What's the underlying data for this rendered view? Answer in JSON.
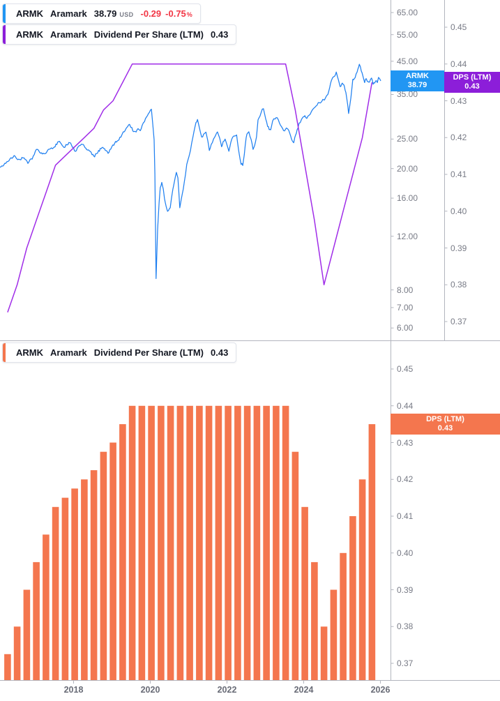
{
  "colors": {
    "price_blue": "#2080f0",
    "badge_blue": "#2196f3",
    "dps_purple_line": "#a02de8",
    "badge_purple": "#8c1ed9",
    "dps_orange": "#f4764e",
    "negative_red": "#f23645",
    "axis_line_gray": "#b2b5be",
    "axis_text_gray": "#787b86",
    "legend_text": "#131722"
  },
  "legends": {
    "price_row": {
      "symbol": "ARMK",
      "name": "Aramark",
      "last_price": "38.79",
      "currency": "USD",
      "change": "-0.29",
      "change_pct": "-0.75",
      "pct_sign": "%"
    },
    "dps_row_top": {
      "symbol": "ARMK",
      "name": "Aramark",
      "metric": "Dividend Per Share (LTM)",
      "value": "0.43"
    },
    "dps_row_bottom": {
      "symbol": "ARMK",
      "name": "Aramark",
      "metric": "Dividend Per Share (LTM)",
      "value": "0.43"
    }
  },
  "badges": {
    "price": {
      "line1": "ARMK",
      "line2": "38.79"
    },
    "dps_top": {
      "line1": "DPS (LTM)",
      "line2": "0.43"
    },
    "dps_bottom": {
      "line1": "DPS (LTM)",
      "line2": "0.43"
    }
  },
  "chart_data": [
    {
      "type": "line",
      "pane": "price-pane",
      "title": "ARMK Aramark close price (USD), daily",
      "x_axis_years": [
        2018,
        2020,
        2022,
        2024,
        2026
      ],
      "price_axis": {
        "scale": "log",
        "side": "right",
        "tick_values": [
          65,
          55,
          45,
          35,
          25,
          20,
          16,
          12,
          8,
          7,
          6
        ],
        "tick_labels": [
          "65.00",
          "55.00",
          "45.00",
          "35.00",
          "25.00",
          "20.00",
          "16.00",
          "12.00",
          "8.00",
          "7.00",
          "6.00"
        ],
        "last_value": 38.79
      },
      "dps_overlay_axis": {
        "side": "far-right",
        "tick_labels": [
          "0.45",
          "0.44",
          "0.43",
          "0.42",
          "0.41",
          "0.40",
          "0.39",
          "0.38",
          "0.37"
        ],
        "range": [
          0.37,
          0.45
        ],
        "last_value": 0.435
      },
      "series": [
        {
          "name": "ARMK close",
          "color_key": "price_blue",
          "x_unit": "decimal_year",
          "points": [
            [
              2016.08,
              20.2
            ],
            [
              2016.23,
              20.8
            ],
            [
              2016.34,
              21.5
            ],
            [
              2016.45,
              22.0
            ],
            [
              2016.57,
              21.3
            ],
            [
              2016.68,
              21.7
            ],
            [
              2016.81,
              20.9
            ],
            [
              2016.92,
              21.6
            ],
            [
              2017.03,
              23.1
            ],
            [
              2017.14,
              22.5
            ],
            [
              2017.23,
              22.3
            ],
            [
              2017.34,
              23.0
            ],
            [
              2017.45,
              23.3
            ],
            [
              2017.54,
              23.9
            ],
            [
              2017.61,
              24.7
            ],
            [
              2017.68,
              23.9
            ],
            [
              2017.75,
              23.5
            ],
            [
              2017.83,
              24.0
            ],
            [
              2017.9,
              24.4
            ],
            [
              2017.97,
              23.6
            ],
            [
              2018.05,
              22.8
            ],
            [
              2018.12,
              23.6
            ],
            [
              2018.23,
              24.1
            ],
            [
              2018.32,
              23.4
            ],
            [
              2018.41,
              22.9
            ],
            [
              2018.48,
              22.3
            ],
            [
              2018.55,
              22.0
            ],
            [
              2018.65,
              22.8
            ],
            [
              2018.74,
              23.5
            ],
            [
              2018.83,
              23.0
            ],
            [
              2018.9,
              22.5
            ],
            [
              2018.97,
              23.3
            ],
            [
              2019.05,
              24.0
            ],
            [
              2019.14,
              24.7
            ],
            [
              2019.23,
              25.4
            ],
            [
              2019.32,
              26.5
            ],
            [
              2019.41,
              27.4
            ],
            [
              2019.46,
              27.8
            ],
            [
              2019.52,
              27.3
            ],
            [
              2019.57,
              26.3
            ],
            [
              2019.63,
              26.4
            ],
            [
              2019.68,
              27.0
            ],
            [
              2019.74,
              26.6
            ],
            [
              2019.79,
              27.7
            ],
            [
              2019.85,
              28.7
            ],
            [
              2019.9,
              29.5
            ],
            [
              2019.95,
              30.3
            ],
            [
              2020.03,
              31.3
            ],
            [
              2020.06,
              28.4
            ],
            [
              2020.1,
              24.9
            ],
            [
              2020.12,
              19.2
            ],
            [
              2020.15,
              8.7
            ],
            [
              2020.19,
              12.6
            ],
            [
              2020.23,
              15.5
            ],
            [
              2020.26,
              17.2
            ],
            [
              2020.3,
              18.0
            ],
            [
              2020.34,
              17.1
            ],
            [
              2020.37,
              16.0
            ],
            [
              2020.41,
              15.1
            ],
            [
              2020.45,
              14.4
            ],
            [
              2020.48,
              14.7
            ],
            [
              2020.52,
              14.9
            ],
            [
              2020.55,
              15.9
            ],
            [
              2020.59,
              17.1
            ],
            [
              2020.63,
              18.2
            ],
            [
              2020.68,
              19.4
            ],
            [
              2020.72,
              18.7
            ],
            [
              2020.77,
              14.9
            ],
            [
              2020.81,
              15.9
            ],
            [
              2020.86,
              17.1
            ],
            [
              2020.92,
              19.2
            ],
            [
              2020.95,
              20.7
            ],
            [
              2021.01,
              22.1
            ],
            [
              2021.05,
              23.0
            ],
            [
              2021.08,
              24.3
            ],
            [
              2021.14,
              26.5
            ],
            [
              2021.19,
              28.3
            ],
            [
              2021.23,
              29.0
            ],
            [
              2021.28,
              27.3
            ],
            [
              2021.34,
              25.3
            ],
            [
              2021.39,
              25.8
            ],
            [
              2021.45,
              26.3
            ],
            [
              2021.5,
              24.7
            ],
            [
              2021.54,
              23.1
            ],
            [
              2021.59,
              24.0
            ],
            [
              2021.65,
              24.9
            ],
            [
              2021.7,
              25.5
            ],
            [
              2021.75,
              26.3
            ],
            [
              2021.81,
              25.2
            ],
            [
              2021.86,
              23.7
            ],
            [
              2021.9,
              24.4
            ],
            [
              2021.95,
              25.0
            ],
            [
              2022.01,
              23.7
            ],
            [
              2022.05,
              22.8
            ],
            [
              2022.1,
              24.3
            ],
            [
              2022.15,
              25.4
            ],
            [
              2022.21,
              25.6
            ],
            [
              2022.25,
              25.8
            ],
            [
              2022.3,
              23.1
            ],
            [
              2022.34,
              21.4
            ],
            [
              2022.37,
              20.8
            ],
            [
              2022.41,
              20.5
            ],
            [
              2022.45,
              22.2
            ],
            [
              2022.5,
              25.4
            ],
            [
              2022.54,
              26.1
            ],
            [
              2022.57,
              26.3
            ],
            [
              2022.63,
              24.9
            ],
            [
              2022.68,
              23.3
            ],
            [
              2022.72,
              23.8
            ],
            [
              2022.77,
              25.4
            ],
            [
              2022.81,
              28.9
            ],
            [
              2022.86,
              29.5
            ],
            [
              2022.92,
              31.1
            ],
            [
              2022.95,
              31.4
            ],
            [
              2023.01,
              29.2
            ],
            [
              2023.06,
              27.7
            ],
            [
              2023.1,
              26.8
            ],
            [
              2023.14,
              26.8
            ],
            [
              2023.19,
              28.7
            ],
            [
              2023.25,
              29.3
            ],
            [
              2023.28,
              29.6
            ],
            [
              2023.34,
              28.9
            ],
            [
              2023.39,
              28.0
            ],
            [
              2023.45,
              27.1
            ],
            [
              2023.5,
              26.5
            ],
            [
              2023.55,
              27.3
            ],
            [
              2023.61,
              26.8
            ],
            [
              2023.66,
              25.6
            ],
            [
              2023.7,
              24.9
            ],
            [
              2023.74,
              24.3
            ],
            [
              2023.77,
              25.4
            ],
            [
              2023.81,
              26.3
            ],
            [
              2023.85,
              27.3
            ],
            [
              2023.88,
              28.1
            ],
            [
              2023.94,
              28.9
            ],
            [
              2023.99,
              29.6
            ],
            [
              2024.03,
              29.9
            ],
            [
              2024.08,
              29.3
            ],
            [
              2024.14,
              29.8
            ],
            [
              2024.17,
              30.4
            ],
            [
              2024.23,
              31.1
            ],
            [
              2024.26,
              31.6
            ],
            [
              2024.32,
              32.2
            ],
            [
              2024.35,
              32.4
            ],
            [
              2024.41,
              33.1
            ],
            [
              2024.45,
              33.0
            ],
            [
              2024.5,
              33.5
            ],
            [
              2024.54,
              33.8
            ],
            [
              2024.59,
              34.5
            ],
            [
              2024.63,
              35.1
            ],
            [
              2024.68,
              37.0
            ],
            [
              2024.72,
              38.6
            ],
            [
              2024.75,
              39.4
            ],
            [
              2024.79,
              40.0
            ],
            [
              2024.83,
              40.9
            ],
            [
              2024.85,
              41.5
            ],
            [
              2024.88,
              40.0
            ],
            [
              2024.9,
              39.0
            ],
            [
              2024.94,
              37.6
            ],
            [
              2024.95,
              37.0
            ],
            [
              2024.99,
              38.0
            ],
            [
              2025.01,
              38.4
            ],
            [
              2025.05,
              37.6
            ],
            [
              2025.06,
              37.0
            ],
            [
              2025.1,
              35.5
            ],
            [
              2025.12,
              34.2
            ],
            [
              2025.15,
              32.1
            ],
            [
              2025.17,
              30.3
            ],
            [
              2025.21,
              32.8
            ],
            [
              2025.23,
              34.2
            ],
            [
              2025.26,
              37.0
            ],
            [
              2025.28,
              39.0
            ],
            [
              2025.32,
              39.6
            ],
            [
              2025.34,
              40.0
            ],
            [
              2025.37,
              40.7
            ],
            [
              2025.39,
              41.1
            ],
            [
              2025.43,
              42.9
            ],
            [
              2025.45,
              43.8
            ],
            [
              2025.48,
              42.9
            ],
            [
              2025.5,
              42.2
            ],
            [
              2025.54,
              40.5
            ],
            [
              2025.56,
              39.4
            ],
            [
              2025.59,
              38.4
            ],
            [
              2025.63,
              39.6
            ],
            [
              2025.66,
              38.8
            ],
            [
              2025.7,
              38.2
            ],
            [
              2025.74,
              39.2
            ],
            [
              2025.77,
              39.4
            ],
            [
              2025.81,
              38.0
            ],
            [
              2025.85,
              38.4
            ],
            [
              2025.88,
              39.0
            ],
            [
              2025.92,
              38.6
            ],
            [
              2025.95,
              39.6
            ],
            [
              2026.01,
              38.79
            ]
          ]
        },
        {
          "name": "Dividend Per Share (LTM) overlay",
          "color_key": "dps_purple_line",
          "note": "same quarterly values as bottom pane bars, drawn as a line on the far-right 0.37-0.45 axis"
        }
      ]
    },
    {
      "type": "bar",
      "pane": "dps-pane",
      "title": "ARMK Aramark Dividend Per Share (LTM)",
      "axis": {
        "side": "right",
        "tick_labels": [
          "0.45",
          "0.44",
          "0.43",
          "0.42",
          "0.41",
          "0.40",
          "0.39",
          "0.38",
          "0.37"
        ],
        "range": [
          0.37,
          0.45
        ]
      },
      "frequency": "quarterly",
      "start_period": "2016-Q2",
      "start_decimal_year": 2016.28,
      "values": [
        0.3725,
        0.38,
        0.39,
        0.3975,
        0.405,
        0.4125,
        0.415,
        0.4175,
        0.42,
        0.4225,
        0.4275,
        0.43,
        0.435,
        0.44,
        0.44,
        0.44,
        0.44,
        0.44,
        0.44,
        0.44,
        0.44,
        0.44,
        0.44,
        0.44,
        0.44,
        0.44,
        0.44,
        0.44,
        0.44,
        0.44,
        0.4275,
        0.4125,
        0.3975,
        0.38,
        0.39,
        0.4,
        0.41,
        0.42,
        0.435
      ]
    }
  ],
  "x_axis": {
    "year_labels": [
      "2018",
      "2020",
      "2022",
      "2024",
      "2026"
    ]
  }
}
